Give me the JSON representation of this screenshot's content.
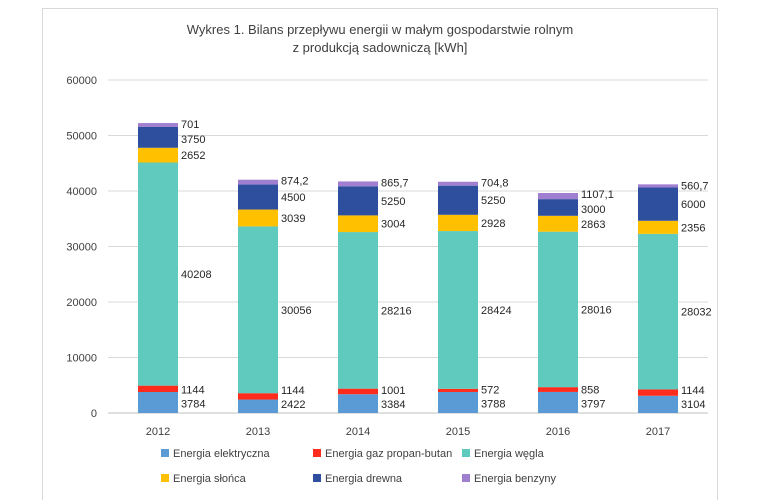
{
  "chart_data": {
    "type": "bar",
    "stacked": true,
    "title": [
      "Wykres 1. Bilans przepływu energii w małym gospodarstwie rolnym",
      "z produkcją sadowniczą [kWh]"
    ],
    "categories": [
      "2012",
      "2013",
      "2014",
      "2015",
      "2016",
      "2017"
    ],
    "ylim": [
      0,
      60000
    ],
    "yticks": [
      0,
      10000,
      20000,
      30000,
      40000,
      50000,
      60000
    ],
    "ytick_labels": [
      "0",
      "10000",
      "20000",
      "30000",
      "40000",
      "50000",
      "60000"
    ],
    "grid": true,
    "legend_position": "bottom",
    "series": [
      {
        "name": "Energia elektryczna",
        "color": "#5b9bd5",
        "values": [
          3784,
          2422,
          3384,
          3788,
          3797,
          3104
        ],
        "labels": [
          "3784",
          "2422",
          "3384",
          "3788",
          "3797",
          "3104"
        ]
      },
      {
        "name": "Energia gaz propan-butan",
        "color": "#ff2b1c",
        "values": [
          1144,
          1144,
          1001,
          572,
          858,
          1144
        ],
        "labels": [
          "1144",
          "1144",
          "1001",
          "572",
          "858",
          "1144"
        ]
      },
      {
        "name": "Energia węgla",
        "color": "#5fcabd",
        "values": [
          40208,
          30056,
          28216,
          28424,
          28016,
          28032
        ],
        "labels": [
          "40208",
          "30056",
          "28216",
          "28424",
          "28016",
          "28032"
        ]
      },
      {
        "name": "Energia słońca",
        "color": "#ffc000",
        "values": [
          2652,
          3039,
          3004,
          2928,
          2863,
          2356
        ],
        "labels": [
          "2652",
          "3039",
          "3004",
          "2928",
          "2863",
          "2356"
        ]
      },
      {
        "name": "Energia drewna",
        "color": "#2e4f9e",
        "values": [
          3750,
          4500,
          5250,
          5250,
          3000,
          6000
        ],
        "labels": [
          "3750",
          "4500",
          "5250",
          "5250",
          "3000",
          "6000"
        ]
      },
      {
        "name": "Energia benzyny",
        "color": "#a07fd0",
        "values": [
          701,
          874.2,
          865.7,
          704.8,
          1107.1,
          560.7
        ],
        "labels": [
          "701",
          "874,2",
          "865,7",
          "704,8",
          "1107,1",
          "560,7"
        ]
      }
    ]
  }
}
